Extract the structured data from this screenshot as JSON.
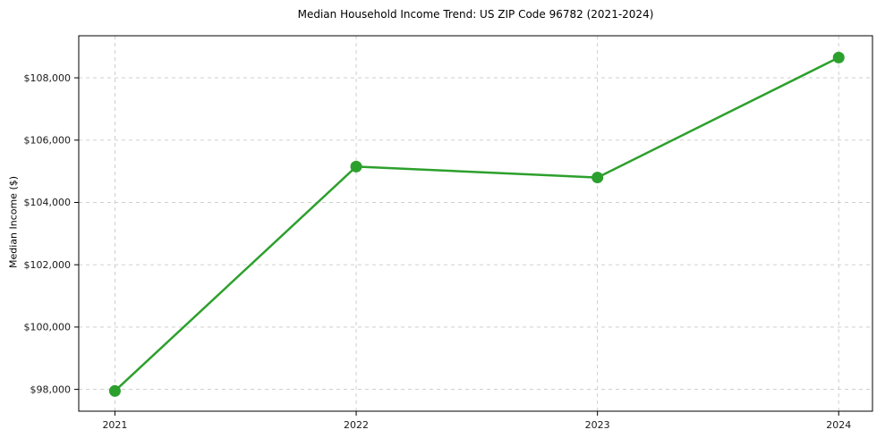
{
  "chart_data": {
    "type": "line",
    "title": "Median Household Income Trend: US ZIP Code 96782 (2021-2024)",
    "xlabel": "",
    "ylabel": "Median Income ($)",
    "x": [
      2021,
      2022,
      2023,
      2024
    ],
    "x_tick_labels": [
      "2021",
      "2022",
      "2023",
      "2024"
    ],
    "series": [
      {
        "name": "Median Household Income",
        "values": [
          97950,
          105150,
          104800,
          108650
        ]
      }
    ],
    "y_tick_values": [
      98000,
      100000,
      102000,
      104000,
      106000,
      108000
    ],
    "y_tick_labels": [
      "$98,000",
      "$100,000",
      "$102,000",
      "$104,000",
      "$106,000",
      "$108,000"
    ],
    "ylim": [
      97300,
      109350
    ],
    "xlim": [
      2020.85,
      2024.14
    ],
    "grid": true,
    "grid_style": "dashed",
    "legend": "none",
    "colors": {
      "line": "#2ca02c",
      "marker": "#2ca02c",
      "grid": "#c9c9c9",
      "axis_border": "#000000",
      "tick_text": "#1a1a1a",
      "background": "#ffffff"
    }
  }
}
